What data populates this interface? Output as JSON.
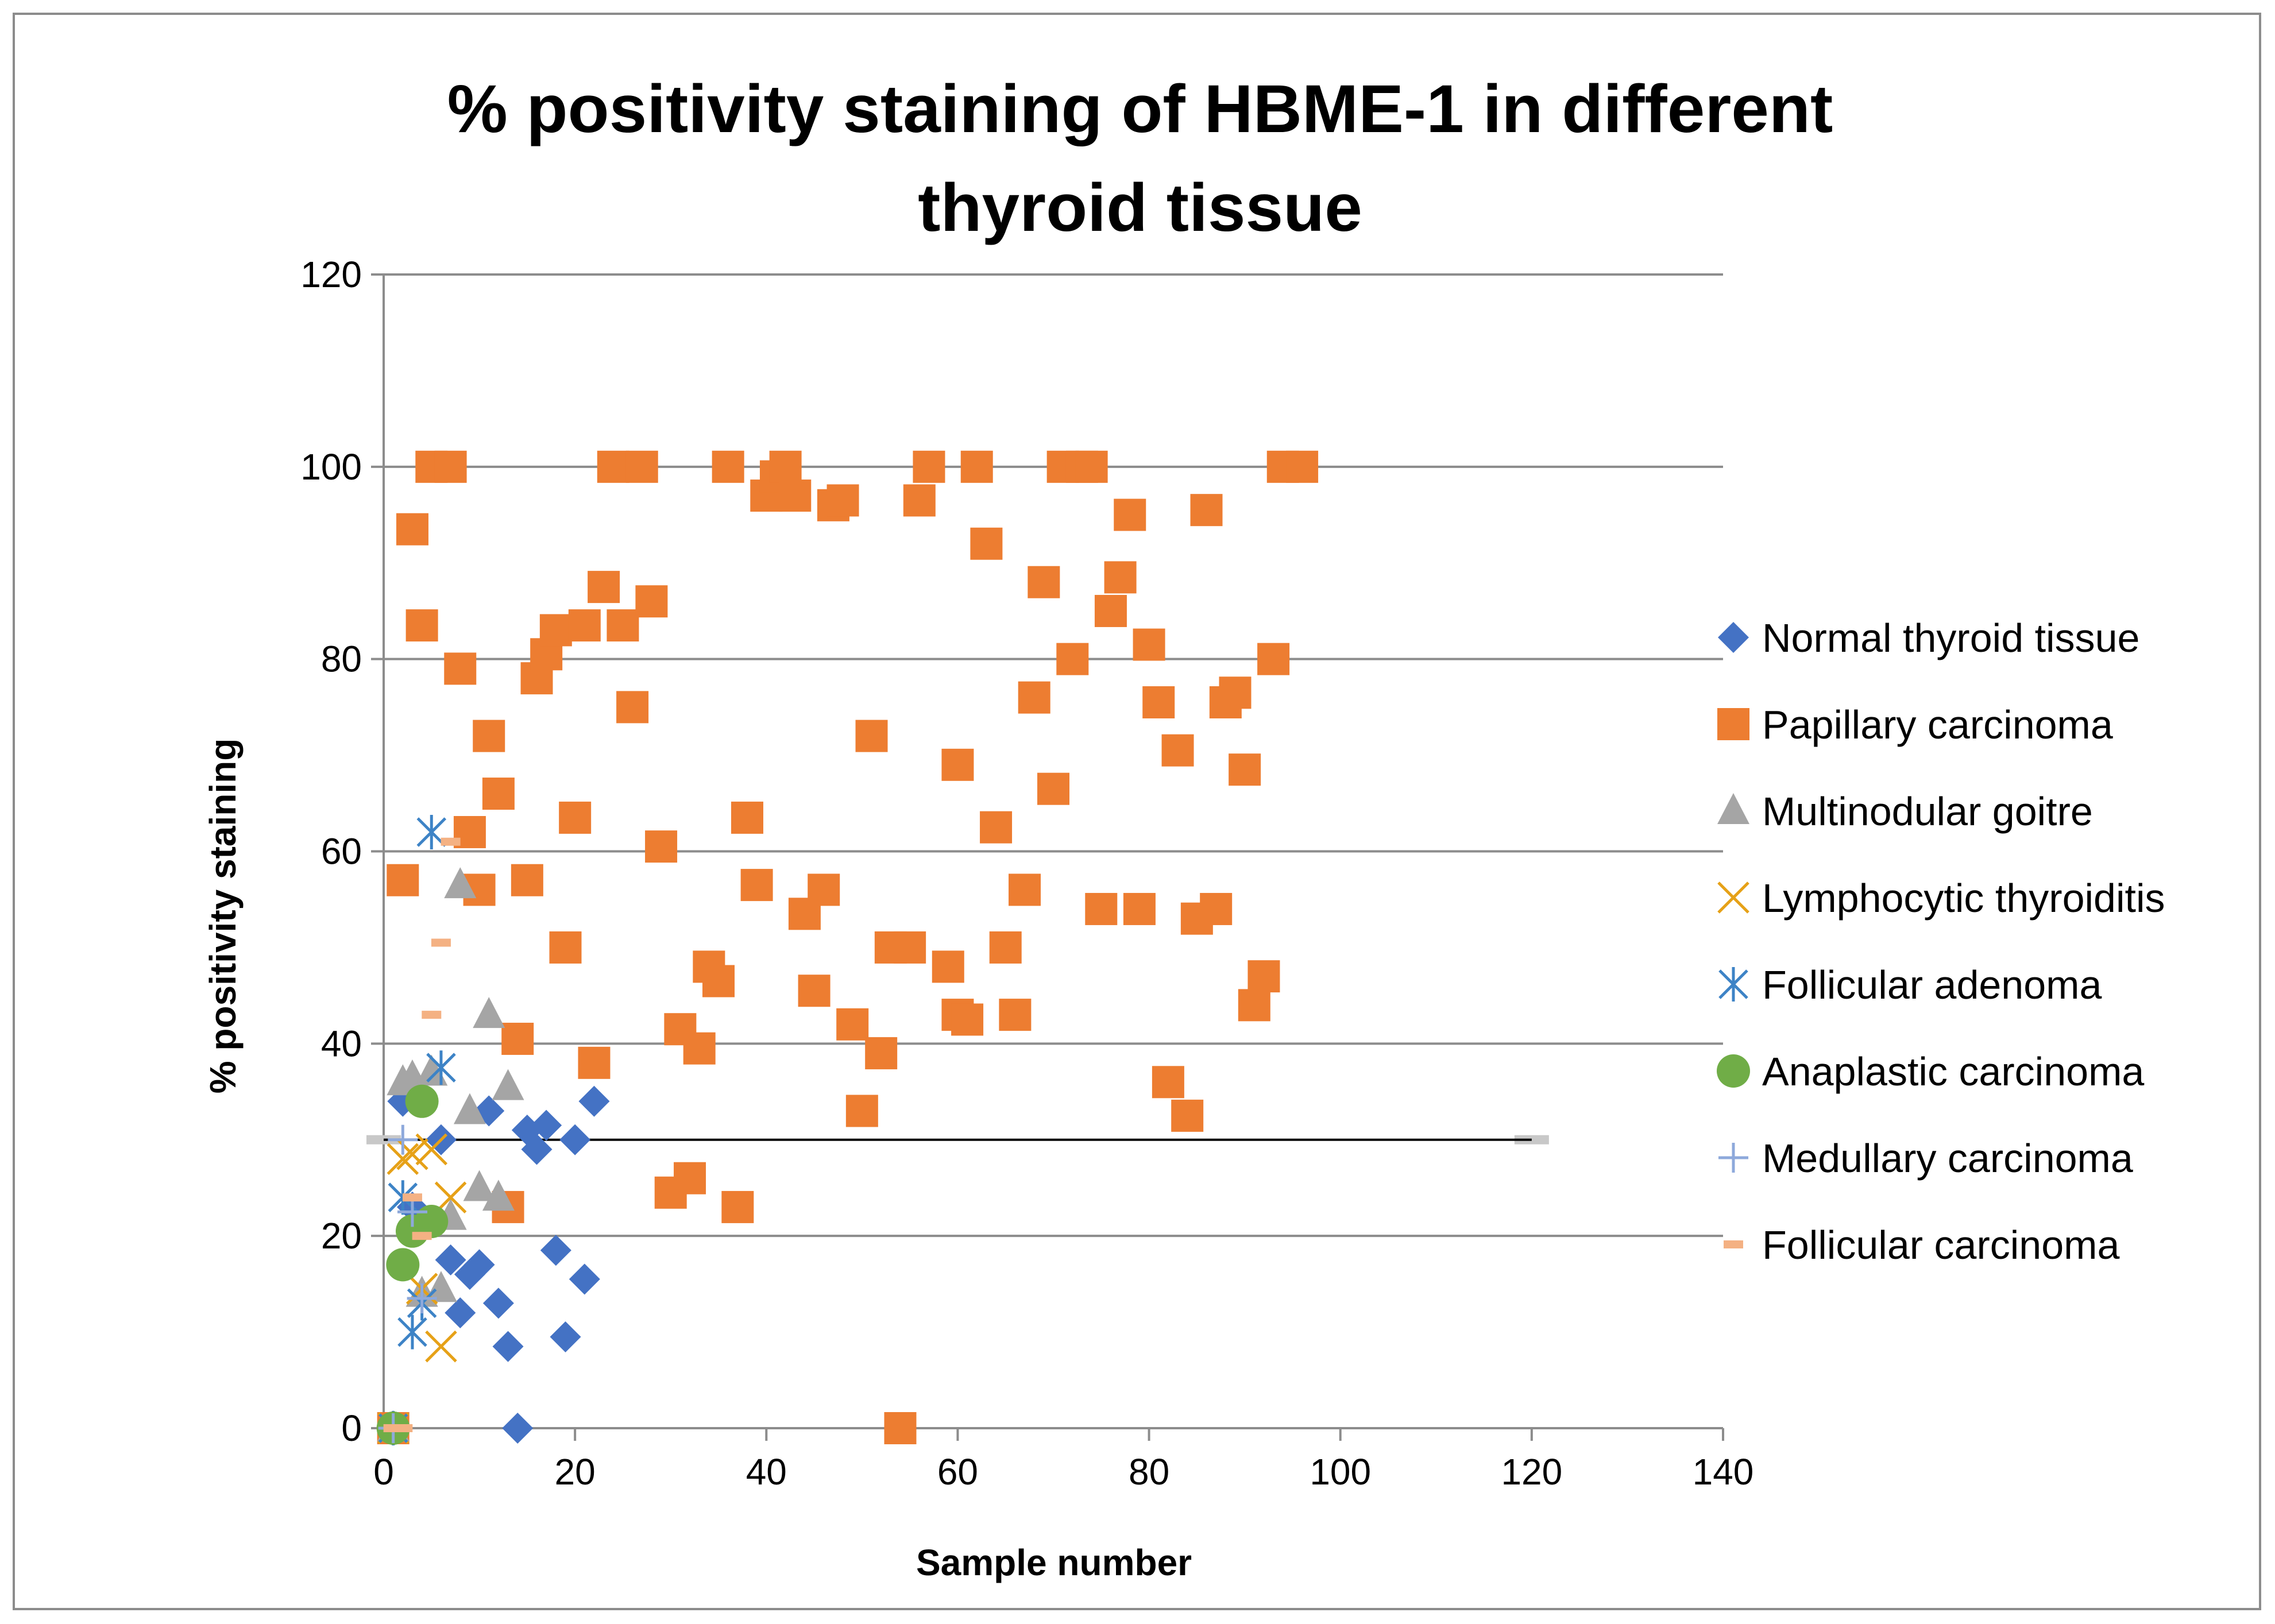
{
  "chart_data": {
    "type": "scatter",
    "title_lines": [
      "% positivity staining of HBME-1 in different",
      "thyroid tissue"
    ],
    "xlabel": "Sample number",
    "ylabel": "% positivity staining",
    "xlim": [
      0,
      140
    ],
    "ylim": [
      0,
      120
    ],
    "x_ticks": [
      "0",
      "20",
      "40",
      "60",
      "80",
      "100",
      "120",
      "140"
    ],
    "y_ticks": [
      "0",
      "20",
      "40",
      "60",
      "80",
      "100",
      "120"
    ],
    "grid": "horizontal major",
    "legend_position": "right",
    "threshold_line": {
      "y": 30,
      "x_range": [
        0,
        120
      ]
    },
    "series": [
      {
        "name": "Normal thyroid tissue",
        "marker": "diamond",
        "color": "#4472c4",
        "points": [
          [
            1,
            0
          ],
          [
            2,
            34
          ],
          [
            3,
            23
          ],
          [
            6,
            30
          ],
          [
            7,
            17.5
          ],
          [
            8,
            12
          ],
          [
            9,
            16
          ],
          [
            10,
            17
          ],
          [
            11,
            33
          ],
          [
            12,
            13
          ],
          [
            13,
            8.5
          ],
          [
            14,
            0
          ],
          [
            15,
            31
          ],
          [
            16,
            29
          ],
          [
            17,
            31.5
          ],
          [
            18,
            18.5
          ],
          [
            19,
            9.5
          ],
          [
            20,
            30
          ],
          [
            21,
            15.5
          ],
          [
            22,
            34
          ]
        ]
      },
      {
        "name": "Papillary carcinoma",
        "marker": "square",
        "color": "#ed7d31",
        "points": [
          [
            1,
            0
          ],
          [
            2,
            57
          ],
          [
            3,
            93.5
          ],
          [
            4,
            83.5
          ],
          [
            5,
            100
          ],
          [
            7,
            100
          ],
          [
            8,
            79
          ],
          [
            9,
            62
          ],
          [
            10,
            56
          ],
          [
            11,
            72
          ],
          [
            12,
            66
          ],
          [
            13,
            23
          ],
          [
            14,
            40.5
          ],
          [
            15,
            57
          ],
          [
            16,
            78
          ],
          [
            17,
            80.5
          ],
          [
            18,
            83
          ],
          [
            19,
            50
          ],
          [
            20,
            63.5
          ],
          [
            21,
            83.5
          ],
          [
            22,
            38
          ],
          [
            23,
            87.5
          ],
          [
            24,
            100
          ],
          [
            25,
            83.5
          ],
          [
            26,
            75
          ],
          [
            27,
            100
          ],
          [
            28,
            86
          ],
          [
            29,
            60.5
          ],
          [
            30,
            24.5
          ],
          [
            31,
            41.5
          ],
          [
            32,
            26
          ],
          [
            33,
            39.5
          ],
          [
            34,
            48
          ],
          [
            35,
            46.5
          ],
          [
            36,
            100
          ],
          [
            37,
            23
          ],
          [
            38,
            63.5
          ],
          [
            39,
            56.5
          ],
          [
            40,
            97
          ],
          [
            41,
            99
          ],
          [
            42,
            100
          ],
          [
            43,
            97
          ],
          [
            44,
            53.5
          ],
          [
            45,
            45.5
          ],
          [
            46,
            56
          ],
          [
            47,
            96
          ],
          [
            48,
            96.5
          ],
          [
            49,
            42
          ],
          [
            50,
            33
          ],
          [
            51,
            72
          ],
          [
            52,
            39
          ],
          [
            53,
            50
          ],
          [
            54,
            0
          ],
          [
            55,
            50
          ],
          [
            56,
            96.5
          ],
          [
            57,
            100
          ],
          [
            59,
            48
          ],
          [
            60,
            43
          ],
          [
            60,
            69
          ],
          [
            61,
            42.5
          ],
          [
            62,
            100
          ],
          [
            63,
            92
          ],
          [
            64,
            62.5
          ],
          [
            65,
            50
          ],
          [
            66,
            43
          ],
          [
            67,
            56
          ],
          [
            68,
            76
          ],
          [
            69,
            88
          ],
          [
            70,
            66.5
          ],
          [
            71,
            100
          ],
          [
            72,
            80
          ],
          [
            73,
            100
          ],
          [
            74,
            100
          ],
          [
            75,
            54
          ],
          [
            76,
            85
          ],
          [
            77,
            88.5
          ],
          [
            78,
            95
          ],
          [
            79,
            54
          ],
          [
            80,
            81.5
          ],
          [
            81,
            75.5
          ],
          [
            82,
            36
          ],
          [
            83,
            70.5
          ],
          [
            84,
            32.5
          ],
          [
            85,
            53
          ],
          [
            86,
            95.5
          ],
          [
            87,
            54
          ],
          [
            88,
            75.5
          ],
          [
            89,
            76.5
          ],
          [
            90,
            68.5
          ],
          [
            91,
            44
          ],
          [
            92,
            47
          ],
          [
            93,
            80
          ],
          [
            94,
            100
          ],
          [
            96,
            100
          ]
        ]
      },
      {
        "name": "Multinodular goitre",
        "marker": "triangle",
        "color": "#a5a5a5",
        "points": [
          [
            1,
            0
          ],
          [
            2,
            36
          ],
          [
            3,
            36.5
          ],
          [
            4,
            14
          ],
          [
            5,
            37
          ],
          [
            6,
            14.5
          ],
          [
            7,
            22
          ],
          [
            8,
            56.5
          ],
          [
            9,
            33
          ],
          [
            10,
            25
          ],
          [
            11,
            43
          ],
          [
            12,
            24
          ],
          [
            13,
            35.5
          ]
        ]
      },
      {
        "name": "Lymphocytic thyroiditis",
        "marker": "x",
        "color": "#e6a117",
        "points": [
          [
            1,
            0
          ],
          [
            2,
            28
          ],
          [
            3,
            28.5
          ],
          [
            4,
            14.5
          ],
          [
            5,
            29
          ],
          [
            6,
            8.5
          ],
          [
            7,
            24
          ]
        ]
      },
      {
        "name": "Follicular adenoma",
        "marker": "asterisk",
        "color": "#3d83c6",
        "points": [
          [
            1,
            0
          ],
          [
            2,
            24
          ],
          [
            3,
            10
          ],
          [
            4,
            13
          ],
          [
            5,
            62
          ],
          [
            6,
            37.5
          ]
        ]
      },
      {
        "name": "Anaplastic carcinoma",
        "marker": "circle",
        "color": "#70ad47",
        "points": [
          [
            1,
            0
          ],
          [
            2,
            17
          ],
          [
            3,
            20.5
          ],
          [
            4,
            34
          ],
          [
            5,
            21.5
          ]
        ]
      },
      {
        "name": "Medullary carcinoma",
        "marker": "plus",
        "color": "#8ea9db",
        "points": [
          [
            1,
            0
          ],
          [
            2,
            30
          ],
          [
            3,
            22.5
          ],
          [
            4,
            13.5
          ]
        ]
      },
      {
        "name": "Follicular carcinoma",
        "marker": "dash",
        "color": "#f4b183",
        "points": [
          [
            1,
            0
          ],
          [
            2,
            0
          ],
          [
            3,
            24
          ],
          [
            4,
            20
          ],
          [
            5,
            43
          ],
          [
            6,
            50.5
          ],
          [
            7,
            61
          ]
        ]
      }
    ]
  }
}
